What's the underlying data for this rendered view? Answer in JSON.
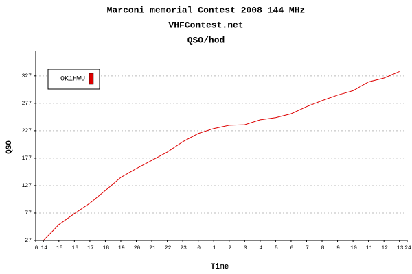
{
  "chart_data": {
    "type": "line",
    "title": "Marconi memorial Contest 2008 144 MHz",
    "subtitle": "VHFContest.net",
    "subtitle2": "QSO/hod",
    "xlabel": "Time",
    "ylabel": "QSO",
    "x": [
      0.5,
      1.5,
      2.5,
      3.5,
      4.5,
      5.5,
      6.5,
      7.5,
      8.5,
      9.5,
      10.5,
      11.5,
      12.5,
      13.5,
      14.5,
      15.5,
      16.5,
      17.5,
      18.5,
      19.5,
      20.5,
      21.5,
      22.5,
      23.5
    ],
    "series": [
      {
        "name": "OK1HWU",
        "color": "#dd0000",
        "values": [
          27,
          56,
          76,
          95,
          118,
          142,
          158,
          173,
          188,
          207,
          222,
          231,
          237,
          238,
          247,
          251,
          258,
          271,
          282,
          292,
          300,
          316,
          323,
          335
        ]
      }
    ],
    "xlim": [
      0,
      24
    ],
    "xticks": [
      0,
      {
        "value": 0.5,
        "label": "14"
      },
      {
        "value": 1.5,
        "label": "15"
      },
      {
        "value": 2.5,
        "label": "16"
      },
      {
        "value": 3.5,
        "label": "17"
      },
      {
        "value": 4.5,
        "label": "18"
      },
      {
        "value": 5.5,
        "label": "19"
      },
      {
        "value": 6.5,
        "label": "20"
      },
      {
        "value": 7.5,
        "label": "21"
      },
      {
        "value": 8.5,
        "label": "22"
      },
      {
        "value": 9.5,
        "label": "23"
      },
      {
        "value": 10.5,
        "label": "0"
      },
      {
        "value": 11.5,
        "label": "1"
      },
      {
        "value": 12.5,
        "label": "2"
      },
      {
        "value": 13.5,
        "label": "3"
      },
      {
        "value": 14.5,
        "label": "4"
      },
      {
        "value": 15.5,
        "label": "5"
      },
      {
        "value": 16.5,
        "label": "6"
      },
      {
        "value": 17.5,
        "label": "7"
      },
      {
        "value": 18.5,
        "label": "8"
      },
      {
        "value": 19.5,
        "label": "9"
      },
      {
        "value": 20.5,
        "label": "10"
      },
      {
        "value": 21.5,
        "label": "11"
      },
      {
        "value": 22.5,
        "label": "12"
      },
      {
        "value": 23.5,
        "label": "13"
      },
      24
    ],
    "ylim": [
      27,
      373
    ],
    "yticks": [
      27,
      77,
      127,
      177,
      227,
      277,
      327
    ],
    "grid": true,
    "legend": "top-left"
  }
}
